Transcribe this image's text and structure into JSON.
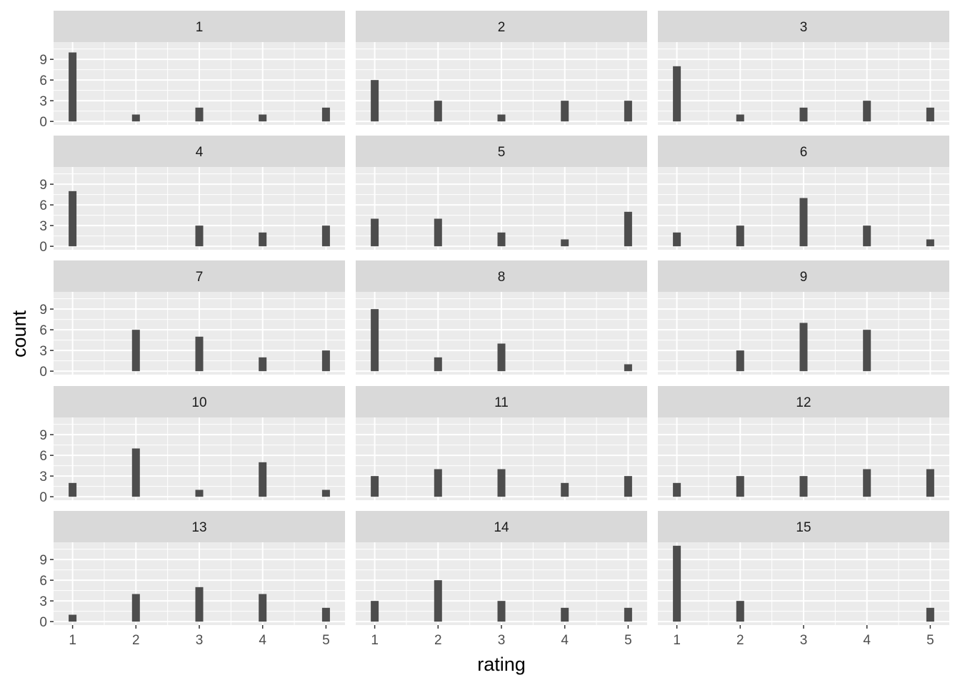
{
  "chart_data": {
    "type": "bar",
    "xlabel": "rating",
    "ylabel": "count",
    "x_ticks": [
      1,
      2,
      3,
      4,
      5
    ],
    "y_ticks": [
      0,
      3,
      6,
      9
    ],
    "xlim": [
      0.7,
      5.3
    ],
    "ylim": [
      -0.5,
      11.5
    ],
    "grid": true,
    "facets": [
      {
        "label": "1",
        "values": [
          10,
          1,
          2,
          1,
          2
        ]
      },
      {
        "label": "2",
        "values": [
          6,
          3,
          1,
          3,
          3
        ]
      },
      {
        "label": "3",
        "values": [
          8,
          1,
          2,
          3,
          2
        ]
      },
      {
        "label": "4",
        "values": [
          8,
          0,
          3,
          2,
          3
        ]
      },
      {
        "label": "5",
        "values": [
          4,
          4,
          2,
          1,
          5
        ]
      },
      {
        "label": "6",
        "values": [
          2,
          3,
          7,
          3,
          1
        ]
      },
      {
        "label": "7",
        "values": [
          0,
          6,
          5,
          2,
          3
        ]
      },
      {
        "label": "8",
        "values": [
          9,
          2,
          4,
          0,
          1
        ]
      },
      {
        "label": "9",
        "values": [
          0,
          3,
          7,
          6,
          0
        ]
      },
      {
        "label": "10",
        "values": [
          2,
          7,
          1,
          5,
          1
        ]
      },
      {
        "label": "11",
        "values": [
          3,
          4,
          4,
          2,
          3
        ]
      },
      {
        "label": "12",
        "values": [
          2,
          3,
          3,
          4,
          4
        ]
      },
      {
        "label": "13",
        "values": [
          1,
          4,
          5,
          4,
          2
        ]
      },
      {
        "label": "14",
        "values": [
          3,
          6,
          3,
          2,
          2
        ]
      },
      {
        "label": "15",
        "values": [
          11,
          3,
          0,
          0,
          2
        ]
      }
    ]
  },
  "colors": {
    "panel_background": "#ebebeb",
    "strip_background": "#d9d9d9",
    "grid_major": "#ffffff",
    "bar_fill": "#4d4d4d",
    "text": "#1a1a1a",
    "tick_text": "#4d4d4d"
  }
}
